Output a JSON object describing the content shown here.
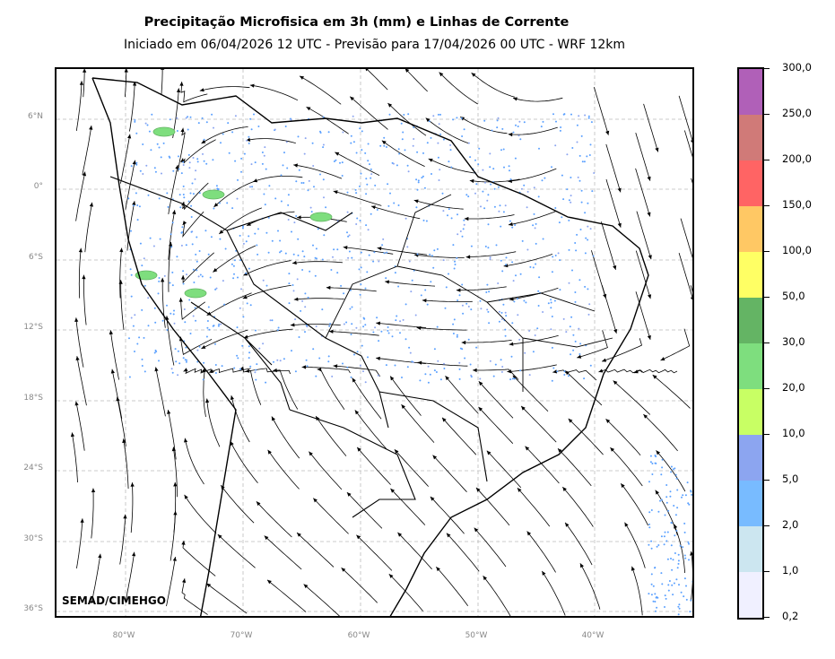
{
  "title": "Precipitação Microfisica em 3h (mm) e Linhas de Corrente",
  "subtitle": "Iniciado em 06/04/2026 12 UTC - Previsão para 17/04/2026 00 UTC - WRF 12km",
  "credit": "SEMAD/CIMEHGO",
  "axes": {
    "lat_labels": [
      "6°N",
      "0°",
      "6°S",
      "12°S",
      "18°S",
      "24°S",
      "30°S",
      "36°S"
    ],
    "lon_labels": [
      "80°W",
      "70°W",
      "60°W",
      "50°W",
      "40°W"
    ]
  },
  "colorbar": {
    "labels": [
      "300,0",
      "250,0",
      "200,0",
      "150,0",
      "100,0",
      "50,0",
      "30,0",
      "20,0",
      "10,0",
      "5,0",
      "2,0",
      "1,0",
      "0,2"
    ],
    "colors": [
      "#b060b8",
      "#d07a78",
      "#ff6464",
      "#ffc864",
      "#ffff64",
      "#64b464",
      "#7ede7e",
      "#c8ff64",
      "#8ca5f0",
      "#78bbff",
      "#cce6f0",
      "#f0f0ff"
    ]
  }
}
